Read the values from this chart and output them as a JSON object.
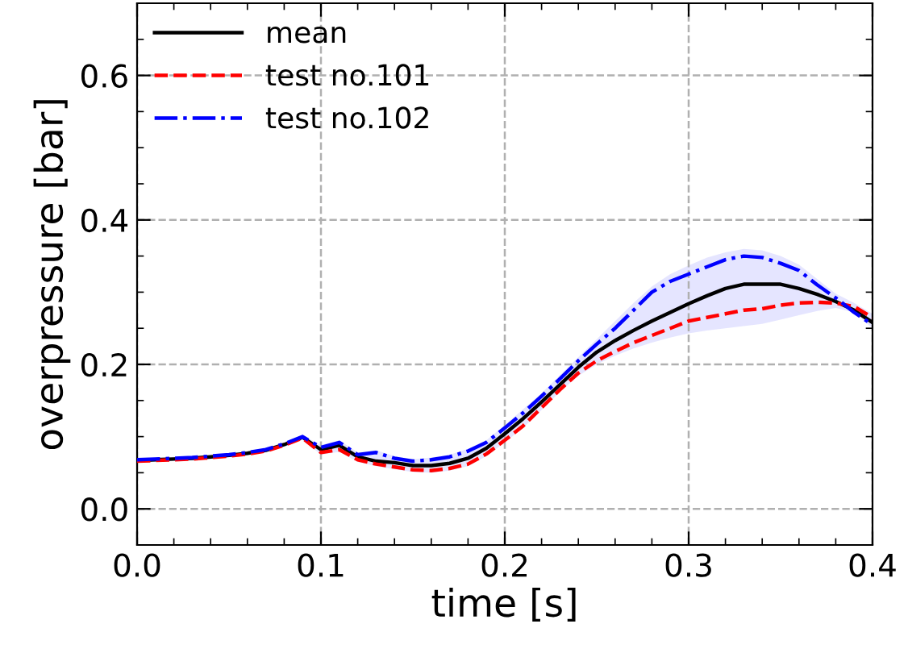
{
  "chart_data": {
    "type": "line",
    "xlabel": "time [s]",
    "ylabel": "overpressure [bar]",
    "x": [
      0,
      0.01,
      0.02,
      0.03,
      0.04,
      0.05,
      0.06,
      0.07,
      0.08,
      0.09,
      0.1,
      0.11,
      0.12,
      0.13,
      0.14,
      0.15,
      0.16,
      0.17,
      0.18,
      0.19,
      0.2,
      0.21,
      0.22,
      0.23,
      0.24,
      0.25,
      0.26,
      0.27,
      0.28,
      0.29,
      0.3,
      0.31,
      0.32,
      0.33,
      0.34,
      0.35,
      0.36,
      0.37,
      0.38,
      0.39,
      0.4
    ],
    "series": [
      {
        "name": "mean",
        "color": "#000000",
        "line_style": "solid",
        "values": [
          0.067,
          0.068,
          0.069,
          0.07,
          0.072,
          0.074,
          0.077,
          0.081,
          0.089,
          0.099,
          0.082,
          0.088,
          0.072,
          0.066,
          0.064,
          0.06,
          0.06,
          0.063,
          0.07,
          0.084,
          0.104,
          0.125,
          0.148,
          0.172,
          0.196,
          0.217,
          0.233,
          0.247,
          0.26,
          0.272,
          0.284,
          0.295,
          0.305,
          0.311,
          0.311,
          0.311,
          0.305,
          0.297,
          0.287,
          0.275,
          0.258
        ],
        "lower": [
          0.064,
          0.065,
          0.066,
          0.067,
          0.069,
          0.071,
          0.074,
          0.078,
          0.086,
          0.096,
          0.075,
          0.079,
          0.065,
          0.059,
          0.055,
          0.051,
          0.05,
          0.053,
          0.059,
          0.073,
          0.092,
          0.112,
          0.137,
          0.162,
          0.184,
          0.2,
          0.212,
          0.222,
          0.23,
          0.237,
          0.243,
          0.247,
          0.25,
          0.253,
          0.256,
          0.262,
          0.268,
          0.274,
          0.278,
          0.272,
          0.25
        ],
        "upper": [
          0.07,
          0.071,
          0.072,
          0.073,
          0.075,
          0.077,
          0.08,
          0.084,
          0.092,
          0.102,
          0.088,
          0.095,
          0.078,
          0.081,
          0.073,
          0.069,
          0.071,
          0.075,
          0.083,
          0.095,
          0.116,
          0.138,
          0.16,
          0.185,
          0.21,
          0.235,
          0.26,
          0.285,
          0.308,
          0.325,
          0.337,
          0.348,
          0.355,
          0.36,
          0.358,
          0.35,
          0.338,
          0.318,
          0.298,
          0.285,
          0.27
        ]
      },
      {
        "name": "test no.101",
        "color": "#ff0000",
        "line_style": "dashed",
        "values": [
          0.066,
          0.067,
          0.068,
          0.069,
          0.071,
          0.073,
          0.076,
          0.08,
          0.088,
          0.098,
          0.078,
          0.082,
          0.068,
          0.062,
          0.058,
          0.054,
          0.053,
          0.056,
          0.062,
          0.076,
          0.095,
          0.115,
          0.14,
          0.165,
          0.188,
          0.205,
          0.218,
          0.23,
          0.24,
          0.25,
          0.26,
          0.265,
          0.27,
          0.275,
          0.277,
          0.282,
          0.285,
          0.286,
          0.285,
          0.28,
          0.265
        ]
      },
      {
        "name": "test no.102",
        "color": "#0000ff",
        "line_style": "dashdot",
        "values": [
          0.068,
          0.069,
          0.07,
          0.071,
          0.073,
          0.075,
          0.078,
          0.082,
          0.09,
          0.1,
          0.085,
          0.092,
          0.075,
          0.078,
          0.07,
          0.066,
          0.068,
          0.072,
          0.08,
          0.092,
          0.112,
          0.133,
          0.156,
          0.18,
          0.205,
          0.228,
          0.25,
          0.275,
          0.3,
          0.315,
          0.325,
          0.335,
          0.345,
          0.35,
          0.348,
          0.34,
          0.33,
          0.31,
          0.292,
          0.272,
          0.255
        ]
      }
    ],
    "xlim": [
      0,
      0.4
    ],
    "ylim": [
      -0.05,
      0.7
    ],
    "xticks": [
      {
        "value": 0,
        "label": "0.0"
      },
      0.1,
      0.2,
      0.3,
      0.4
    ],
    "yticks": [
      {
        "value": 0,
        "label": "0.0"
      },
      0.2,
      0.4,
      0.6
    ],
    "grid": true,
    "legend": "top left"
  }
}
